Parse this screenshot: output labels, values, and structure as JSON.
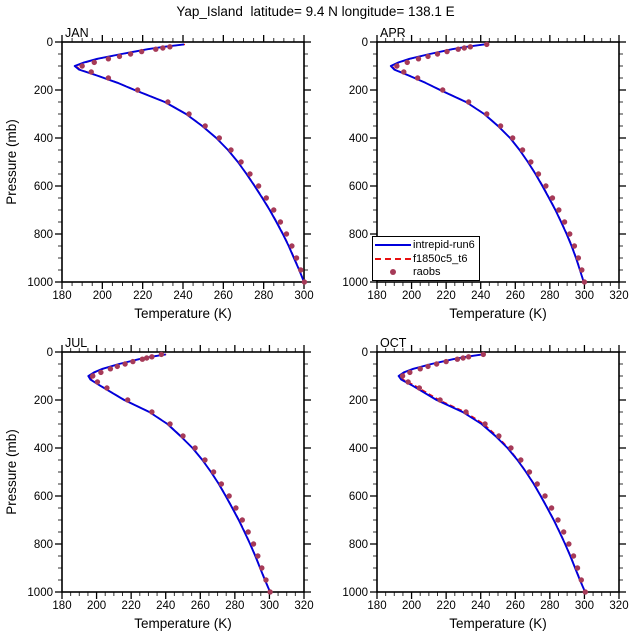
{
  "title": "Yap_Island  latitude= 9.4 N longitude= 138.1 E",
  "colors": {
    "model1_blue": "#0000dc",
    "model2_red": "#e81010",
    "obs_maroon": "#a63a58",
    "frame": "#000000",
    "minor_tick": "#333333",
    "background": "#ffffff"
  },
  "legend": {
    "entries": [
      {
        "label": "intrepid-run6",
        "style": "solid-line",
        "color": "#0000dc"
      },
      {
        "label": "f1850c5_t6",
        "style": "dashed-line",
        "color": "#e81010"
      },
      {
        "label": "raobs",
        "style": "dot",
        "color": "#a63a58"
      }
    ]
  },
  "chart_data": {
    "type": "line",
    "title": "Yap_Island  latitude= 9.4 N longitude= 138.1 E",
    "x_label": "Temperature (K)",
    "y_label": "Pressure (mb)",
    "grid": false,
    "legend_position": "inside APR panel, bottom-left",
    "panels": [
      {
        "month": "JAN",
        "x_range": [
          180,
          300
        ],
        "x_tick_step": 20,
        "x_minor_step": 5,
        "y_range": [
          0,
          1000
        ],
        "y_tick_step": 200,
        "y_minor_step": 50,
        "y_inverted": true,
        "show_y_title": true,
        "series": [
          {
            "name": "intrepid-run6",
            "style": "solid",
            "color": "#0000dc",
            "p": [
              10,
              20,
              30,
              50,
              70,
              85,
              100,
              115,
              140,
              170,
              200,
              250,
              300,
              350,
              400,
              450,
              500,
              550,
              600,
              650,
              700,
              750,
              800,
              850,
              900,
              950,
              1000
            ],
            "t": [
              240.5,
              230.5,
              222.5,
              209.5,
              197.5,
              191,
              186.3,
              188.5,
              197.5,
              207.5,
              216,
              231,
              241.5,
              249.5,
              256.5,
              262.3,
              267.2,
              271.5,
              275.5,
              279.3,
              283,
              286.3,
              289.5,
              292.4,
              295,
              297.6,
              300
            ]
          },
          {
            "name": "f1850c5_t6",
            "style": "dashed",
            "color": "#e81010",
            "p": [
              10,
              20,
              30,
              50,
              70,
              85,
              100,
              115,
              140,
              170,
              200,
              250,
              300,
              350,
              400,
              450,
              500,
              550,
              600,
              650,
              700,
              750,
              800,
              850,
              900,
              950,
              1000
            ],
            "t": [
              241,
              230.8,
              222.7,
              209.8,
              198,
              191.8,
              187.1,
              189,
              197.8,
              207.7,
              216.3,
              231.2,
              241.7,
              249.7,
              256.5,
              262.3,
              267.2,
              271.7,
              275.7,
              279.5,
              283.2,
              286.5,
              289.7,
              292.6,
              295.2,
              297.8,
              300
            ]
          },
          {
            "name": "raobs",
            "style": "dots",
            "color": "#a63a58",
            "p": [
              20,
              25,
              30,
              40,
              50,
              60,
              70,
              85,
              100,
              125,
              150,
              200,
              250,
              300,
              350,
              400,
              450,
              500,
              550,
              600,
              650,
              700,
              750,
              800,
              850,
              900,
              950,
              1000
            ],
            "t": [
              233.5,
              230,
              226.5,
              219.5,
              214,
              208.5,
              203,
              196,
              190,
              194.5,
              203,
              217.5,
              232.5,
              243,
              251,
              258,
              263.8,
              268.8,
              273.2,
              277.5,
              281.3,
              285,
              288.3,
              291.3,
              294,
              296.3,
              298.4,
              300.2
            ]
          }
        ]
      },
      {
        "month": "APR",
        "x_range": [
          180,
          320
        ],
        "x_tick_step": 20,
        "x_minor_step": 5,
        "y_range": [
          0,
          1000
        ],
        "y_tick_step": 200,
        "y_minor_step": 50,
        "y_inverted": true,
        "show_y_title": false,
        "series": [
          {
            "name": "intrepid-run6",
            "style": "solid",
            "color": "#0000dc",
            "p": [
              10,
              20,
              30,
              50,
              70,
              85,
              100,
              115,
              140,
              170,
              200,
              250,
              300,
              350,
              400,
              450,
              500,
              550,
              600,
              650,
              700,
              750,
              800,
              850,
              900,
              950,
              1000
            ],
            "t": [
              242,
              231.8,
              223.5,
              210.5,
              198.8,
              192.5,
              188,
              190,
              198.5,
              208,
              216.5,
              231.5,
              242,
              250,
              257,
              262.5,
              267.3,
              271.7,
              275.7,
              279.5,
              283.2,
              286.5,
              289.7,
              292.6,
              295.1,
              297.4,
              299.6
            ]
          },
          {
            "name": "f1850c5_t6",
            "style": "dashed",
            "color": "#e81010",
            "p": [
              10,
              20,
              30,
              50,
              70,
              85,
              100,
              115,
              140,
              170,
              200,
              250,
              300,
              350,
              400,
              450,
              500,
              550,
              600,
              650,
              700,
              750,
              800,
              850,
              900,
              950,
              1000
            ],
            "t": [
              242.3,
              232,
              223.7,
              210.8,
              199.2,
              193.2,
              188.8,
              190.5,
              198.8,
              208.2,
              216.8,
              231.7,
              242.2,
              250.2,
              257,
              262.5,
              267.3,
              271.9,
              275.9,
              279.7,
              283.4,
              286.7,
              289.9,
              292.8,
              295.3,
              297.6,
              299.6
            ]
          },
          {
            "name": "raobs",
            "style": "dots",
            "color": "#a63a58",
            "p": [
              10,
              20,
              25,
              30,
              40,
              50,
              60,
              70,
              85,
              100,
              125,
              150,
              200,
              250,
              300,
              350,
              400,
              450,
              500,
              550,
              600,
              650,
              700,
              750,
              800,
              850,
              900,
              950,
              1000
            ],
            "t": [
              243.5,
              234,
              230.5,
              227,
              220.5,
              215,
              209.5,
              204,
              197.5,
              191.5,
              195.5,
              203.5,
              218,
              233,
              243.5,
              251.5,
              258.5,
              264.2,
              269,
              273.4,
              277.7,
              281.5,
              285.2,
              288.5,
              291.5,
              294.2,
              296.5,
              298.5,
              300
            ]
          }
        ]
      },
      {
        "month": "JUL",
        "x_range": [
          180,
          320
        ],
        "x_tick_step": 20,
        "x_minor_step": 5,
        "y_range": [
          0,
          1000
        ],
        "y_tick_step": 200,
        "y_minor_step": 50,
        "y_inverted": true,
        "show_y_title": true,
        "series": [
          {
            "name": "intrepid-run6",
            "style": "solid",
            "color": "#0000dc",
            "p": [
              10,
              20,
              30,
              50,
              70,
              85,
              100,
              115,
              140,
              170,
              200,
              250,
              300,
              350,
              400,
              450,
              500,
              550,
              600,
              650,
              700,
              750,
              800,
              850,
              900,
              950,
              1000
            ],
            "t": [
              240,
              231.5,
              224.5,
              213,
              203.5,
              198.5,
              195.2,
              196.5,
              202,
              209,
              216,
              230.5,
              241,
              248.5,
              255.5,
              261.2,
              266.2,
              270.7,
              274.7,
              278.5,
              282.2,
              285.6,
              288.8,
              291.8,
              294.6,
              297.4,
              300.4
            ]
          },
          {
            "name": "f1850c5_t6",
            "style": "dashed",
            "color": "#e81010",
            "p": [
              10,
              20,
              30,
              50,
              70,
              85,
              100,
              115,
              140,
              170,
              200,
              250,
              300,
              350,
              400,
              450,
              500,
              550,
              600,
              650,
              700,
              750,
              800,
              850,
              900,
              950,
              1000
            ],
            "t": [
              240.3,
              231.7,
              224.7,
              213.3,
              203.9,
              199.1,
              195.9,
              197.1,
              202.3,
              209.2,
              216.3,
              230.7,
              241.2,
              248.7,
              255.5,
              261.2,
              266.2,
              270.9,
              274.9,
              278.7,
              282.4,
              285.8,
              289,
              292,
              294.8,
              297.6,
              300.4
            ]
          },
          {
            "name": "raobs",
            "style": "dots",
            "color": "#a63a58",
            "p": [
              10,
              20,
              25,
              30,
              40,
              50,
              60,
              70,
              85,
              100,
              125,
              150,
              200,
              250,
              300,
              350,
              400,
              450,
              500,
              550,
              600,
              650,
              700,
              750,
              800,
              850,
              900,
              950,
              1000
            ],
            "t": [
              237.5,
              232,
              229,
              226.5,
              221,
              216.5,
              212,
              208,
              202.5,
              197.8,
              200.5,
              206,
              218,
              232,
              242.5,
              250,
              257,
              262.7,
              267.7,
              272.2,
              276.7,
              280.6,
              284.3,
              287.7,
              290.8,
              293.3,
              295.6,
              298,
              300.4
            ]
          }
        ]
      },
      {
        "month": "OCT",
        "x_range": [
          180,
          320
        ],
        "x_tick_step": 20,
        "x_minor_step": 5,
        "y_range": [
          0,
          1000
        ],
        "y_tick_step": 200,
        "y_minor_step": 50,
        "y_inverted": true,
        "show_y_title": false,
        "series": [
          {
            "name": "intrepid-run6",
            "style": "solid",
            "color": "#0000dc",
            "p": [
              10,
              20,
              30,
              50,
              70,
              85,
              100,
              115,
              140,
              170,
              200,
              250,
              300,
              350,
              400,
              450,
              500,
              550,
              600,
              650,
              700,
              750,
              800,
              850,
              900,
              950,
              1000
            ],
            "t": [
              241,
              231.5,
              224,
              211.5,
              201,
              195.5,
              192.5,
              194,
              200.5,
              207.5,
              214.5,
              229.5,
              240.5,
              248.5,
              255.5,
              261.2,
              266.2,
              270.7,
              274.7,
              278.5,
              282.2,
              285.6,
              288.8,
              291.8,
              294.6,
              297.4,
              300.4
            ]
          },
          {
            "name": "f1850c5_t6",
            "style": "dashed",
            "color": "#e81010",
            "p": [
              10,
              20,
              30,
              50,
              70,
              85,
              100,
              115,
              140,
              170,
              200,
              250,
              300,
              350,
              400,
              450,
              500,
              550,
              600,
              650,
              700,
              750,
              800,
              850,
              900,
              950,
              1000
            ],
            "t": [
              241.2,
              231.7,
              224.2,
              211.8,
              201.4,
              196.2,
              193.4,
              195.2,
              202,
              209,
              216,
              231,
              241.8,
              249.4,
              256,
              261.5,
              266.4,
              270.9,
              274.9,
              278.7,
              282.4,
              285.8,
              289,
              292,
              294.8,
              297.6,
              300.4
            ]
          },
          {
            "name": "raobs",
            "style": "dots",
            "color": "#a63a58",
            "p": [
              10,
              20,
              25,
              30,
              40,
              50,
              60,
              70,
              85,
              100,
              125,
              150,
              200,
              250,
              300,
              350,
              400,
              450,
              500,
              550,
              600,
              650,
              700,
              750,
              800,
              850,
              900,
              950,
              1000
            ],
            "t": [
              241.5,
              233,
              229.8,
              226.5,
              220,
              214.5,
              209.5,
              205,
              199,
              194.8,
              198,
              204.5,
              216.5,
              231.5,
              242.5,
              250.5,
              257.5,
              263.2,
              268.2,
              272.7,
              277.2,
              281,
              284.7,
              288,
              291,
              293.7,
              296,
              298.2,
              300.5
            ]
          }
        ]
      }
    ]
  }
}
